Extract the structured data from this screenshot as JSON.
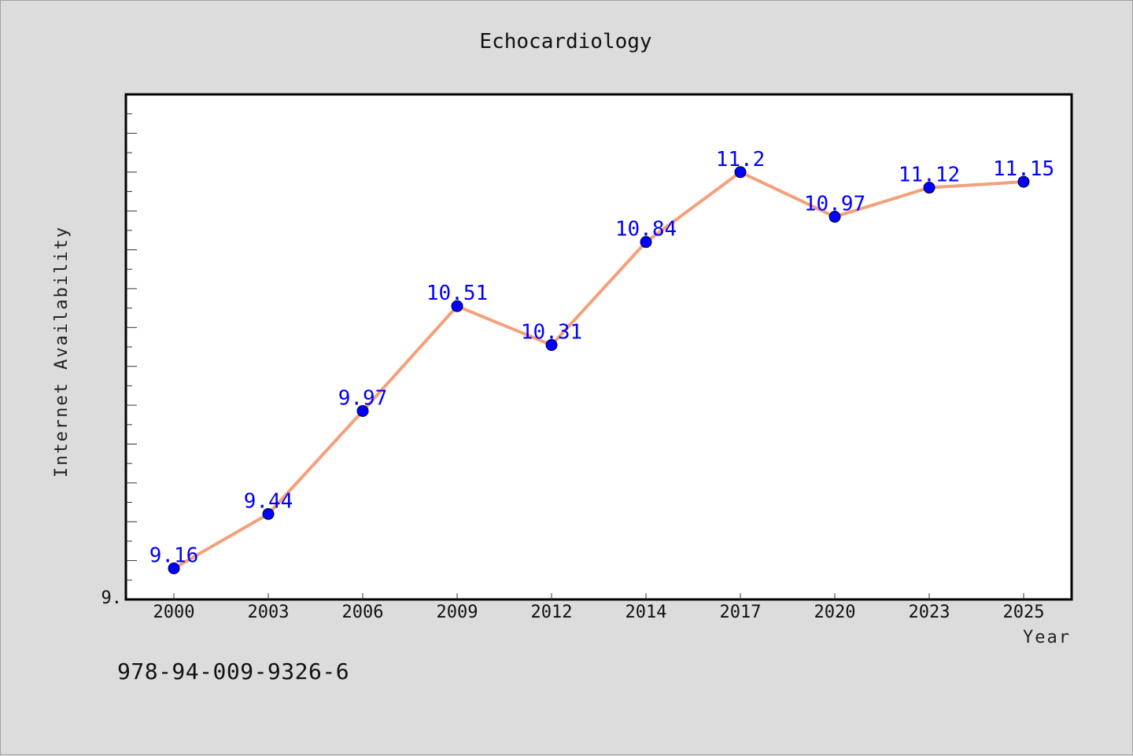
{
  "chart_data": {
    "type": "line",
    "title": "Echocardiology",
    "xlabel": "Year",
    "ylabel": "Internet Availability",
    "categories": [
      "2000",
      "2003",
      "2006",
      "2009",
      "2012",
      "2014",
      "2017",
      "2020",
      "2023",
      "2025"
    ],
    "series": [
      {
        "values": [
          9.16,
          9.44,
          9.97,
          10.51,
          10.31,
          10.84,
          11.2,
          10.97,
          11.12,
          11.15
        ],
        "line_color": "#f4a07a",
        "marker_color": "#0000ff"
      }
    ],
    "data_labels": [
      "9.16",
      "9.44",
      "9.97",
      "10.51",
      "10.31",
      "10.84",
      "11.2",
      "10.97",
      "11.12",
      "11.15"
    ],
    "y_tick_labels": [
      "9."
    ],
    "ylim": [
      9.0,
      11.6
    ],
    "grid": false,
    "legend": "none"
  },
  "footer": {
    "isbn": "978-94-009-9326-6"
  }
}
